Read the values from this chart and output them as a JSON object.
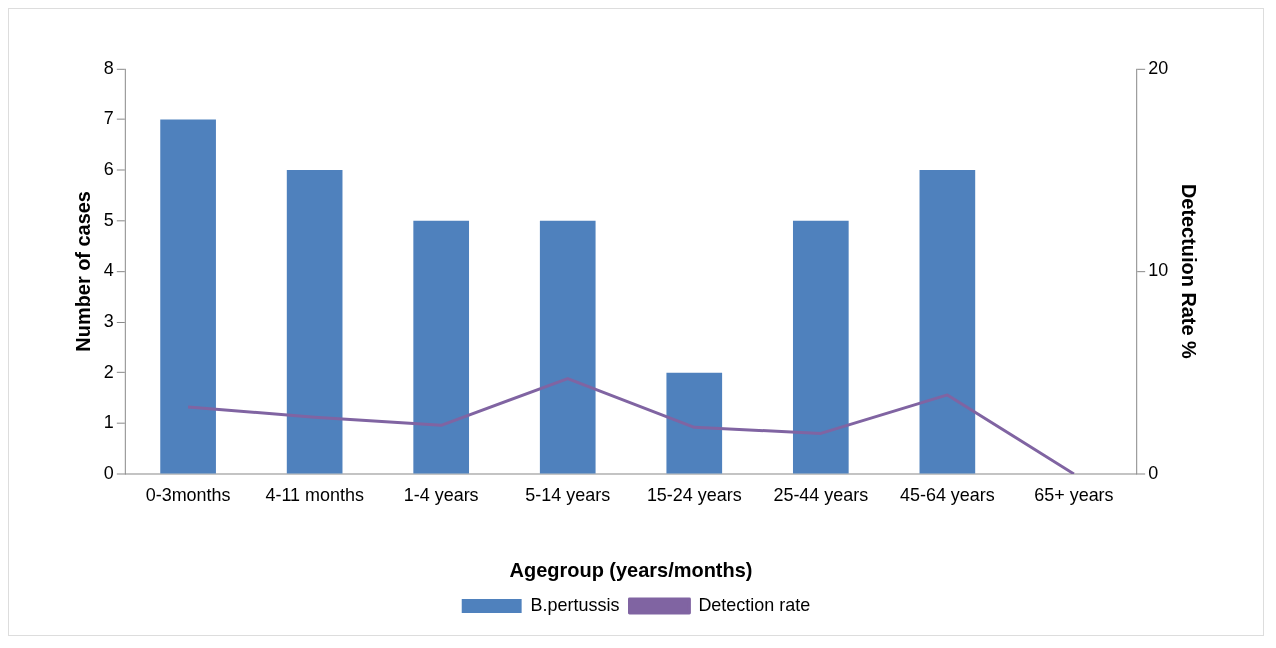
{
  "chart_data": {
    "type": "bar",
    "xlabel": "Agegroup (years/months)",
    "ylabel": "Number of cases",
    "y2label": "Detectuion Rate %",
    "categories": [
      "0-3months",
      "4-11 months",
      "1-4 years",
      "5-14 years",
      "15-24 years",
      "25-44 years",
      "45-64 years",
      "65+ years"
    ],
    "series": [
      {
        "name": "B.pertussis",
        "color": "#4f81bd",
        "values": [
          7,
          6,
          5,
          5,
          2,
          5,
          6,
          0
        ]
      },
      {
        "name": "Detection rate",
        "type": "line",
        "axis": "y2",
        "color": "#8064a2",
        "values": [
          3.3,
          2.8,
          2.4,
          4.7,
          2.3,
          2.0,
          3.9,
          0
        ]
      }
    ],
    "ylim": [
      0,
      8
    ],
    "yticks": [
      0,
      1,
      2,
      3,
      4,
      5,
      6,
      7,
      8
    ],
    "y2lim": [
      0,
      20
    ],
    "y2ticks": [
      0,
      10,
      20
    ],
    "grid": false,
    "legend": "bottom",
    "marker": "none",
    "line_style": "solid"
  }
}
